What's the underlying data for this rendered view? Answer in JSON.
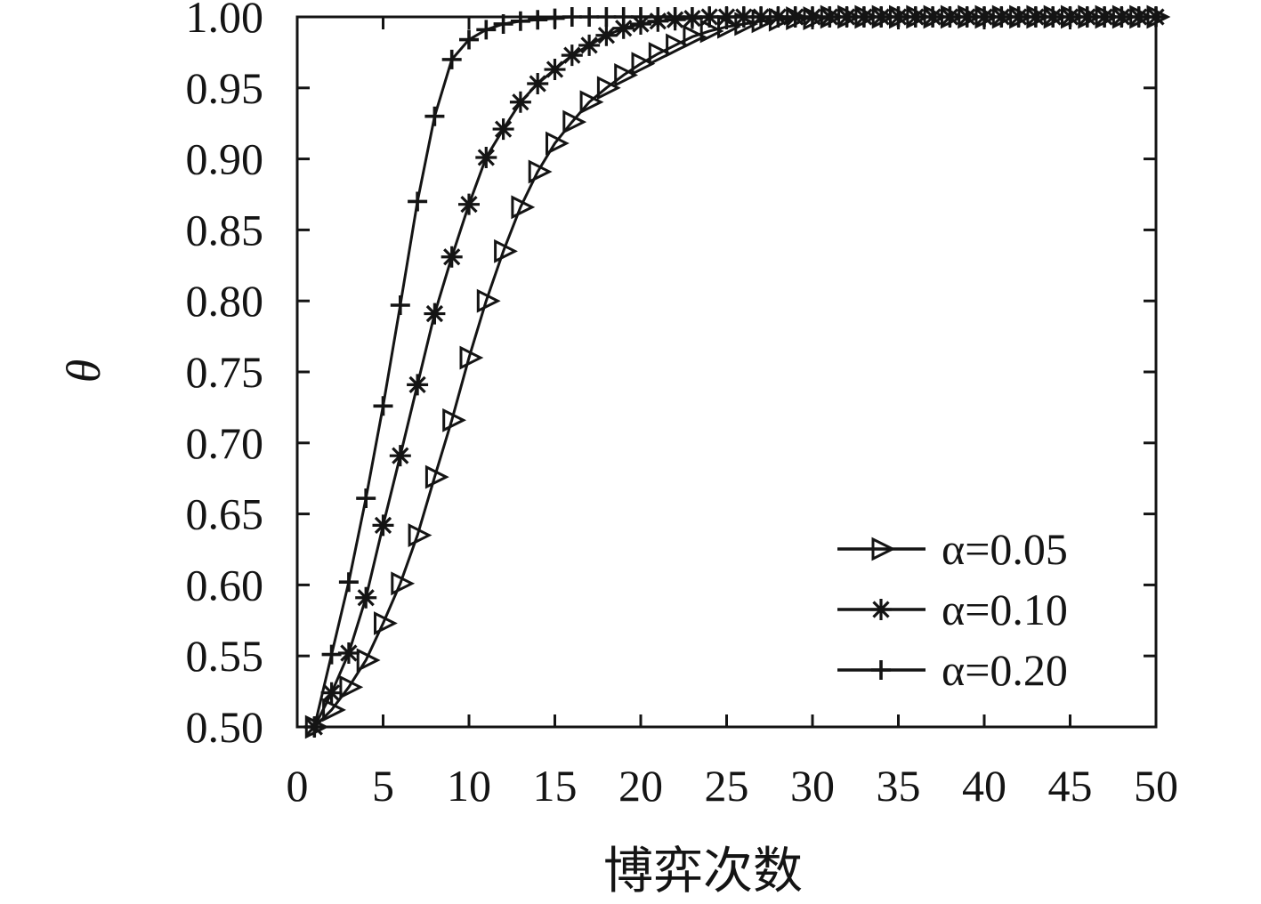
{
  "figure": {
    "background": "#ffffff",
    "ink_color": "#141414"
  },
  "chart_data": {
    "type": "line",
    "title": "",
    "xlabel": "博弈次数",
    "ylabel": "θ",
    "xlim": [
      0,
      50
    ],
    "ylim": [
      0.5,
      1.0
    ],
    "grid": false,
    "legend_position": "inside-right-middle",
    "x_ticks": [
      0,
      5,
      10,
      15,
      20,
      25,
      30,
      35,
      40,
      45,
      50
    ],
    "x_tick_labels": [
      "0",
      "5",
      "10",
      "15",
      "20",
      "25",
      "30",
      "35",
      "40",
      "45",
      "50"
    ],
    "y_ticks": [
      0.5,
      0.55,
      0.6,
      0.65,
      0.7,
      0.75,
      0.8,
      0.85,
      0.9,
      0.95,
      1.0
    ],
    "y_tick_labels": [
      "0.50",
      "0.55",
      "0.60",
      "0.65",
      "0.70",
      "0.75",
      "0.80",
      "0.85",
      "0.90",
      "0.95",
      "1.00"
    ],
    "x": [
      1,
      2,
      3,
      4,
      5,
      6,
      7,
      8,
      9,
      10,
      11,
      12,
      13,
      14,
      15,
      16,
      17,
      18,
      19,
      20,
      21,
      22,
      23,
      24,
      25,
      26,
      27,
      28,
      29,
      30,
      31,
      32,
      33,
      34,
      35,
      36,
      37,
      38,
      39,
      40,
      41,
      42,
      43,
      44,
      45,
      46,
      47,
      48,
      49,
      50
    ],
    "series": [
      {
        "name": "α=0.05",
        "marker": "triangle-right",
        "values": [
          0.5,
          0.512,
          0.528,
          0.547,
          0.573,
          0.601,
          0.635,
          0.676,
          0.716,
          0.76,
          0.8,
          0.835,
          0.866,
          0.891,
          0.911,
          0.926,
          0.94,
          0.95,
          0.959,
          0.967,
          0.974,
          0.98,
          0.986,
          0.99,
          0.993,
          0.995,
          0.997,
          0.998,
          0.999,
          0.999,
          1.0,
          1.0,
          1.0,
          1.0,
          1.0,
          1.0,
          1.0,
          1.0,
          1.0,
          1.0,
          1.0,
          1.0,
          1.0,
          1.0,
          1.0,
          1.0,
          1.0,
          1.0,
          1.0,
          1.0
        ]
      },
      {
        "name": "α=0.10",
        "marker": "asterisk",
        "values": [
          0.5,
          0.524,
          0.552,
          0.591,
          0.642,
          0.691,
          0.741,
          0.791,
          0.831,
          0.868,
          0.901,
          0.921,
          0.94,
          0.953,
          0.963,
          0.973,
          0.98,
          0.987,
          0.992,
          0.995,
          0.997,
          0.998,
          0.999,
          1.0,
          1.0,
          1.0,
          1.0,
          1.0,
          1.0,
          1.0,
          1.0,
          1.0,
          1.0,
          1.0,
          1.0,
          1.0,
          1.0,
          1.0,
          1.0,
          1.0,
          1.0,
          1.0,
          1.0,
          1.0,
          1.0,
          1.0,
          1.0,
          1.0,
          1.0,
          1.0
        ]
      },
      {
        "name": "α=0.20",
        "marker": "plus",
        "values": [
          0.5,
          0.551,
          0.602,
          0.661,
          0.726,
          0.797,
          0.87,
          0.93,
          0.97,
          0.984,
          0.991,
          0.995,
          0.997,
          0.998,
          0.999,
          1.0,
          1.0,
          1.0,
          1.0,
          1.0,
          1.0,
          1.0,
          1.0,
          1.0,
          1.0,
          1.0,
          1.0,
          1.0,
          1.0,
          1.0,
          1.0,
          1.0,
          1.0,
          1.0,
          1.0,
          1.0,
          1.0,
          1.0,
          1.0,
          1.0,
          1.0,
          1.0,
          1.0,
          1.0,
          1.0,
          1.0,
          1.0,
          1.0,
          1.0,
          1.0
        ]
      }
    ]
  }
}
